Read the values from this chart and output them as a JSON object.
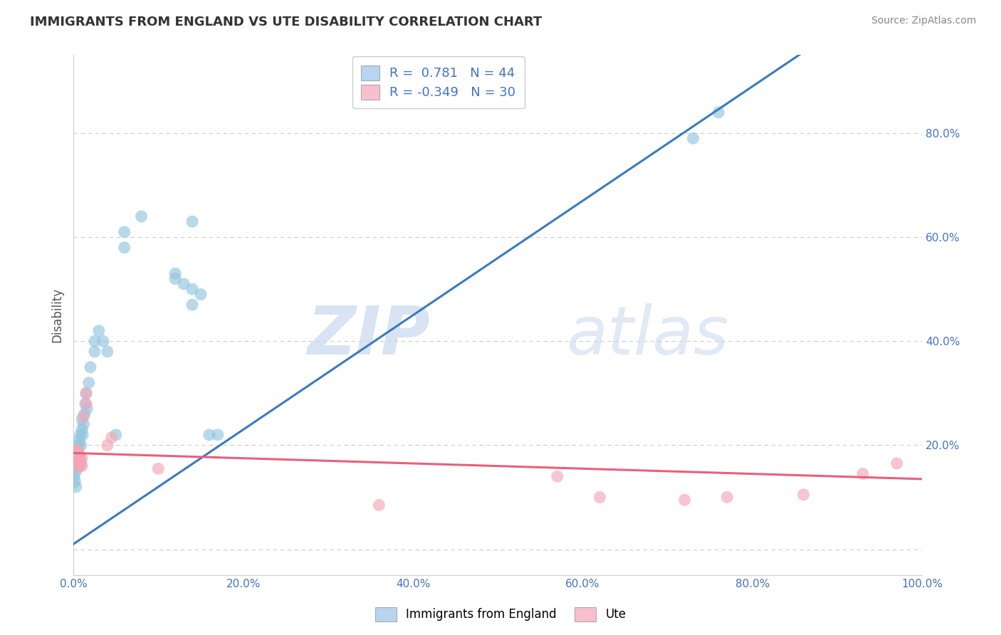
{
  "title": "IMMIGRANTS FROM ENGLAND VS UTE DISABILITY CORRELATION CHART",
  "source": "Source: ZipAtlas.com",
  "ylabel": "Disability",
  "legend_label1": "Immigrants from England",
  "legend_label2": "Ute",
  "r1": 0.781,
  "n1": 44,
  "r2": -0.349,
  "n2": 30,
  "blue_color": "#92c5de",
  "pink_color": "#f4a6b8",
  "blue_line_color": "#3a7bbf",
  "pink_line_color": "#e8607a",
  "blue_scatter": [
    [
      0.001,
      0.14
    ],
    [
      0.002,
      0.13
    ],
    [
      0.003,
      0.12
    ],
    [
      0.003,
      0.15
    ],
    [
      0.004,
      0.16
    ],
    [
      0.004,
      0.18
    ],
    [
      0.005,
      0.17
    ],
    [
      0.005,
      0.19
    ],
    [
      0.006,
      0.2
    ],
    [
      0.006,
      0.16
    ],
    [
      0.007,
      0.18
    ],
    [
      0.007,
      0.21
    ],
    [
      0.008,
      0.22
    ],
    [
      0.009,
      0.2
    ],
    [
      0.01,
      0.23
    ],
    [
      0.01,
      0.25
    ],
    [
      0.011,
      0.22
    ],
    [
      0.012,
      0.24
    ],
    [
      0.013,
      0.26
    ],
    [
      0.014,
      0.28
    ],
    [
      0.015,
      0.3
    ],
    [
      0.016,
      0.27
    ],
    [
      0.018,
      0.32
    ],
    [
      0.02,
      0.35
    ],
    [
      0.025,
      0.38
    ],
    [
      0.025,
      0.4
    ],
    [
      0.03,
      0.42
    ],
    [
      0.035,
      0.4
    ],
    [
      0.04,
      0.38
    ],
    [
      0.05,
      0.22
    ],
    [
      0.06,
      0.58
    ],
    [
      0.06,
      0.61
    ],
    [
      0.08,
      0.64
    ],
    [
      0.12,
      0.52
    ],
    [
      0.12,
      0.53
    ],
    [
      0.13,
      0.51
    ],
    [
      0.14,
      0.63
    ],
    [
      0.14,
      0.5
    ],
    [
      0.14,
      0.47
    ],
    [
      0.15,
      0.49
    ],
    [
      0.16,
      0.22
    ],
    [
      0.17,
      0.22
    ],
    [
      0.73,
      0.79
    ],
    [
      0.76,
      0.84
    ]
  ],
  "pink_scatter": [
    [
      0.001,
      0.16
    ],
    [
      0.002,
      0.17
    ],
    [
      0.003,
      0.18
    ],
    [
      0.003,
      0.19
    ],
    [
      0.004,
      0.175
    ],
    [
      0.004,
      0.18
    ],
    [
      0.005,
      0.19
    ],
    [
      0.005,
      0.175
    ],
    [
      0.006,
      0.185
    ],
    [
      0.006,
      0.17
    ],
    [
      0.007,
      0.18
    ],
    [
      0.007,
      0.16
    ],
    [
      0.008,
      0.175
    ],
    [
      0.009,
      0.165
    ],
    [
      0.01,
      0.16
    ],
    [
      0.01,
      0.175
    ],
    [
      0.012,
      0.255
    ],
    [
      0.015,
      0.28
    ],
    [
      0.015,
      0.3
    ],
    [
      0.04,
      0.2
    ],
    [
      0.045,
      0.215
    ],
    [
      0.1,
      0.155
    ],
    [
      0.36,
      0.085
    ],
    [
      0.57,
      0.14
    ],
    [
      0.62,
      0.1
    ],
    [
      0.72,
      0.095
    ],
    [
      0.77,
      0.1
    ],
    [
      0.86,
      0.105
    ],
    [
      0.93,
      0.145
    ],
    [
      0.97,
      0.165
    ]
  ],
  "xlim": [
    0.0,
    1.0
  ],
  "ylim": [
    -0.05,
    0.95
  ],
  "xtick_vals": [
    0.0,
    0.2,
    0.4,
    0.6,
    0.8,
    1.0
  ],
  "xtick_labels": [
    "0.0%",
    "20.0%",
    "40.0%",
    "60.0%",
    "80.0%",
    "100.0%"
  ],
  "ytick_vals": [
    0.0,
    0.2,
    0.4,
    0.6,
    0.8
  ],
  "ytick_labels": [
    "",
    "20.0%",
    "40.0%",
    "60.0%",
    "80.0%"
  ],
  "watermark_zip": "ZIP",
  "watermark_atlas": "atlas",
  "grid_color": "#cccccc",
  "background_color": "#ffffff"
}
